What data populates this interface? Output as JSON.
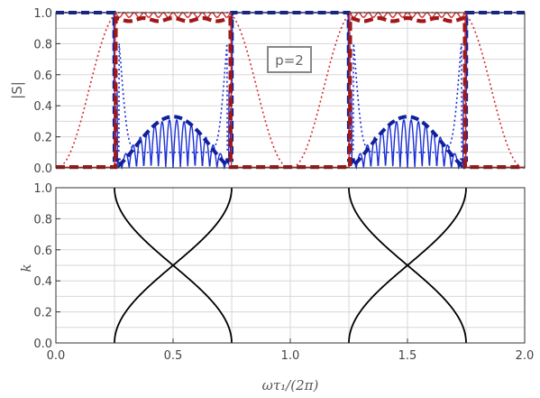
{
  "chart_data": [
    {
      "type": "line",
      "ylabel": "|S|",
      "xlim": [
        0,
        2
      ],
      "ylim": [
        0,
        1
      ],
      "grid": true,
      "x_ticks": [
        "0.0",
        "0.5",
        "1.0",
        "1.5",
        "2.0"
      ],
      "y_ticks": [
        "0.0",
        "0.2",
        "0.4",
        "0.6",
        "0.8",
        "1.0"
      ],
      "annotation": "p=2",
      "colors": {
        "red": "#d42a2a",
        "blue": "#1a2fd6",
        "darkred": "#a01818",
        "darkblue": "#10209a"
      },
      "series_description": [
        {
          "style": "solid",
          "color": "red",
          "summary": "~1.0 on [0.25,0.75] and [1.25,1.75] with small ripples; ~0 elsewhere"
        },
        {
          "style": "dashed-thick",
          "color": "darkred",
          "summary": "~0.95 on the pass bands; 0 elsewhere"
        },
        {
          "style": "dotted",
          "color": "red",
          "summary": "smooth dips to 0 at x=0, 1, 2; rises to ~1 near x=0.27 and x=0.73"
        },
        {
          "style": "solid",
          "color": "blue",
          "summary": "1.0 outside bands; oscillating 0–0.3 inside bands"
        },
        {
          "style": "dashed-thick",
          "color": "darkblue",
          "summary": "1.0 outside bands; envelope peaking at 0.33 at x=0.5 and x=1.5"
        },
        {
          "style": "dotted",
          "color": "blue",
          "summary": "1.0 away from bands; falls to ~0.1 inside bands"
        }
      ]
    },
    {
      "type": "line",
      "xlabel": "ωτ₁/(2π)",
      "ylabel": "k",
      "xlim": [
        0,
        2
      ],
      "ylim": [
        0,
        1
      ],
      "grid": true,
      "x_ticks": [
        "0.0",
        "0.5",
        "1.0",
        "1.5",
        "2.0"
      ],
      "y_ticks": [
        "0.0",
        "0.2",
        "0.4",
        "0.6",
        "0.8",
        "1.0"
      ],
      "band_edges": [
        [
          0.25,
          0.75
        ],
        [
          1.25,
          1.75
        ]
      ],
      "crossing": [
        [
          0.5,
          0.5
        ],
        [
          1.5,
          0.5
        ]
      ],
      "colors": {
        "curve": "#000000"
      }
    }
  ]
}
